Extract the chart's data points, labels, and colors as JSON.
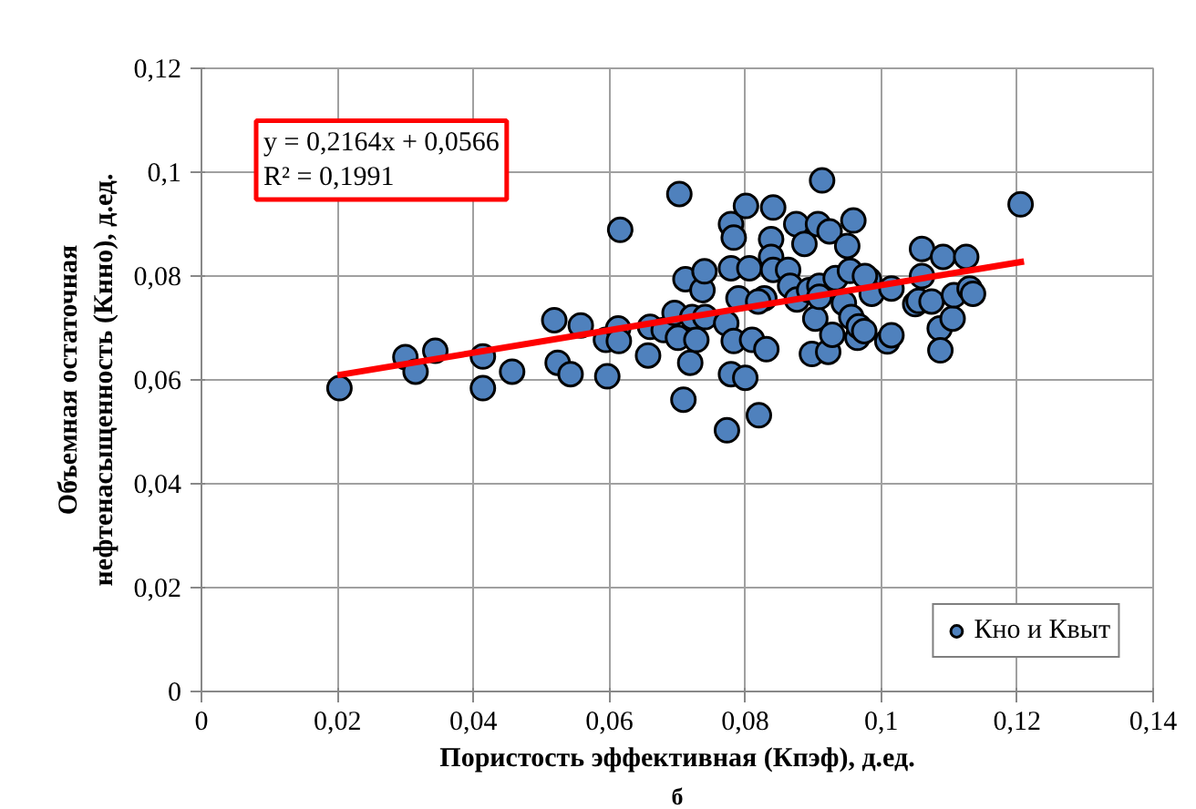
{
  "chart_data": {
    "type": "scatter",
    "xlabel": "Пористость эффективная (Кпэф), д.ед.",
    "ylabel": "Объемная остаточная\nнефтенасыщенность (Кнно), д.ед.",
    "annotations": [
      "y = 0,2164x + 0,0566",
      "R² = 0,1991",
      "б"
    ],
    "xlim": [
      0,
      0.14
    ],
    "ylim": [
      0,
      0.12
    ],
    "xticks": [
      0,
      {
        "value": 0.02,
        "label": "0,02"
      },
      {
        "value": 0.04,
        "label": "0,04"
      },
      {
        "value": 0.06,
        "label": "0,06"
      },
      {
        "value": 0.08,
        "label": "0,08"
      },
      {
        "value": 0.1,
        "label": "0,1"
      },
      {
        "value": 0.12,
        "label": "0,12"
      },
      {
        "value": 0.14,
        "label": "0,14"
      }
    ],
    "yticks": [
      0,
      {
        "value": 0.02,
        "label": "0,02"
      },
      {
        "value": 0.04,
        "label": "0,04"
      },
      {
        "value": 0.06,
        "label": "0,06"
      },
      {
        "value": 0.08,
        "label": "0,08"
      },
      {
        "value": 0.1,
        "label": "0,1"
      },
      {
        "value": 0.12,
        "label": "0,12"
      }
    ],
    "grid": true,
    "legend": "bottom right",
    "marker": "circle",
    "series": [
      {
        "name": "Кно и Квыт",
        "color": "#4f81bd",
        "x": [
          0.0203,
          0.03,
          0.0315,
          0.0344,
          0.0414,
          0.0414,
          0.0457,
          0.0519,
          0.0524,
          0.0543,
          0.0558,
          0.0597,
          0.0595,
          0.0613,
          0.0614,
          0.0616,
          0.0657,
          0.066,
          0.068,
          0.0696,
          0.0701,
          0.0703,
          0.0709,
          0.0712,
          0.0719,
          0.0722,
          0.0728,
          0.0737,
          0.074,
          0.0741,
          0.0772,
          0.0773,
          0.0779,
          0.0783,
          0.0779,
          0.0783,
          0.0779,
          0.079,
          0.08,
          0.0801,
          0.0806,
          0.081,
          0.082,
          0.0828,
          0.0831,
          0.0838,
          0.0838,
          0.0841,
          0.0841,
          0.0863,
          0.0866,
          0.0875,
          0.0876,
          0.0887,
          0.0894,
          0.0898,
          0.0903,
          0.0907,
          0.0909,
          0.0913,
          0.0922,
          0.0924,
          0.0928,
          0.0933,
          0.0945,
          0.095,
          0.0954,
          0.0959,
          0.0956,
          0.0965,
          0.0967,
          0.0975,
          0.0982,
          0.0986,
          0.1009,
          0.1015,
          0.1015,
          0.105,
          0.1055,
          0.106,
          0.106,
          0.1074,
          0.1086,
          0.1087,
          0.1091,
          0.1105,
          0.1107,
          0.1125,
          0.113,
          0.1135,
          0.1205,
          0.0819,
          0.0909,
          0.0976
        ],
        "values": [
          0.0584,
          0.0644,
          0.0616,
          0.0656,
          0.0645,
          0.0584,
          0.0616,
          0.0715,
          0.0633,
          0.0611,
          0.0705,
          0.0607,
          0.0677,
          0.0699,
          0.0675,
          0.0889,
          0.0647,
          0.0702,
          0.0696,
          0.0729,
          0.0681,
          0.0958,
          0.0562,
          0.0794,
          0.0633,
          0.0721,
          0.0677,
          0.0773,
          0.0809,
          0.0721,
          0.0709,
          0.0503,
          0.09,
          0.0874,
          0.0815,
          0.0675,
          0.0611,
          0.0757,
          0.0604,
          0.0935,
          0.0815,
          0.0677,
          0.0532,
          0.0757,
          0.0659,
          0.0871,
          0.0837,
          0.0932,
          0.0812,
          0.0812,
          0.0781,
          0.09,
          0.0755,
          0.0862,
          0.0773,
          0.065,
          0.0718,
          0.09,
          0.0781,
          0.0984,
          0.0654,
          0.0886,
          0.0687,
          0.0796,
          0.0748,
          0.0858,
          0.081,
          0.0907,
          0.0721,
          0.0681,
          0.0703,
          0.0694,
          0.0793,
          0.0766,
          0.0674,
          0.0686,
          0.0776,
          0.0746,
          0.0752,
          0.0852,
          0.08,
          0.0751,
          0.0699,
          0.0657,
          0.0837,
          0.0718,
          0.0763,
          0.0837,
          0.0776,
          0.0766,
          0.0938,
          0.0751,
          0.076,
          0.08
        ]
      },
      {
        "color": "#ff0000",
        "type": "line",
        "marker": "none",
        "x": [
          0.02,
          0.121
        ],
        "values": [
          0.0609,
          0.0828
        ]
      }
    ]
  }
}
